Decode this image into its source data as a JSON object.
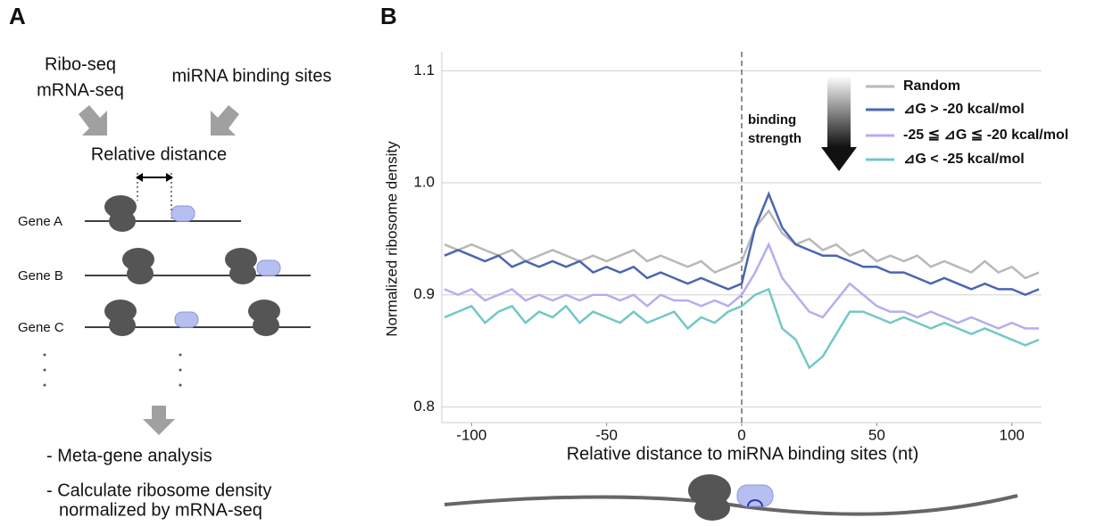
{
  "panel_a": {
    "label": "A",
    "inputs_left": [
      "Ribo-seq",
      "mRNA-seq"
    ],
    "input_right": "miRNA binding sites",
    "relative_distance": "Relative distance",
    "genes": [
      "Gene A",
      "Gene B",
      "Gene C"
    ],
    "steps": [
      "- Meta-gene analysis",
      "- Calculate ribosome density",
      "normalized by mRNA-seq"
    ]
  },
  "panel_b_label": "B",
  "chart_data": {
    "type": "line",
    "xlabel": "Relative distance to miRNA binding sites (nt)",
    "ylabel": "Normalized ribosome density",
    "annotation": [
      "binding",
      "strength"
    ],
    "xlim": [
      -111,
      111
    ],
    "ylim": [
      0.786,
      1.117
    ],
    "xticks": [
      -100,
      -50,
      0,
      50,
      100
    ],
    "yticks": [
      0.8,
      0.9,
      {
        "value": 1,
        "label": "1.0"
      },
      1.1
    ],
    "grid": true,
    "vline": 0,
    "legend": "upper right",
    "x": [
      -110,
      -105,
      -100,
      -95,
      -90,
      -85,
      -80,
      -75,
      -70,
      -65,
      -60,
      -55,
      -50,
      -45,
      -40,
      -35,
      -30,
      -25,
      -20,
      -15,
      -10,
      -5,
      0,
      5,
      10,
      15,
      20,
      25,
      30,
      35,
      40,
      45,
      50,
      55,
      60,
      65,
      70,
      75,
      80,
      85,
      90,
      95,
      100,
      105,
      110
    ],
    "series": [
      {
        "name": "Random",
        "color": "#b8b8b8",
        "values": [
          0.945,
          0.94,
          0.945,
          0.94,
          0.935,
          0.94,
          0.93,
          0.935,
          0.94,
          0.935,
          0.93,
          0.935,
          0.93,
          0.935,
          0.94,
          0.93,
          0.935,
          0.93,
          0.925,
          0.93,
          0.92,
          0.925,
          0.93,
          0.96,
          0.975,
          0.955,
          0.945,
          0.95,
          0.94,
          0.945,
          0.935,
          0.94,
          0.93,
          0.935,
          0.93,
          0.935,
          0.925,
          0.93,
          0.925,
          0.92,
          0.93,
          0.92,
          0.925,
          0.915,
          0.92
        ]
      },
      {
        "name": "⊿G > -20 kcal/mol",
        "color": "#4a66b0",
        "values": [
          0.935,
          0.94,
          0.935,
          0.93,
          0.935,
          0.925,
          0.93,
          0.925,
          0.93,
          0.925,
          0.93,
          0.92,
          0.925,
          0.92,
          0.925,
          0.915,
          0.92,
          0.915,
          0.91,
          0.915,
          0.91,
          0.905,
          0.91,
          0.96,
          0.99,
          0.96,
          0.945,
          0.94,
          0.935,
          0.935,
          0.93,
          0.925,
          0.925,
          0.92,
          0.92,
          0.915,
          0.91,
          0.915,
          0.91,
          0.905,
          0.91,
          0.905,
          0.905,
          0.9,
          0.905
        ]
      },
      {
        "name": "-25 ≦ ⊿G ≦ -20 kcal/mol",
        "color": "#b3aef0",
        "values": [
          0.905,
          0.9,
          0.905,
          0.895,
          0.9,
          0.905,
          0.895,
          0.9,
          0.895,
          0.9,
          0.895,
          0.9,
          0.9,
          0.895,
          0.9,
          0.89,
          0.9,
          0.895,
          0.895,
          0.89,
          0.895,
          0.89,
          0.9,
          0.92,
          0.945,
          0.915,
          0.9,
          0.885,
          0.88,
          0.895,
          0.91,
          0.9,
          0.89,
          0.885,
          0.885,
          0.88,
          0.885,
          0.88,
          0.875,
          0.88,
          0.875,
          0.87,
          0.875,
          0.87,
          0.87
        ]
      },
      {
        "name": "⊿G < -25 kcal/mol",
        "color": "#72c8c4",
        "values": [
          0.88,
          0.885,
          0.89,
          0.875,
          0.885,
          0.89,
          0.875,
          0.885,
          0.88,
          0.89,
          0.875,
          0.885,
          0.88,
          0.875,
          0.885,
          0.875,
          0.88,
          0.885,
          0.87,
          0.88,
          0.875,
          0.885,
          0.89,
          0.9,
          0.905,
          0.87,
          0.86,
          0.835,
          0.845,
          0.865,
          0.885,
          0.885,
          0.88,
          0.875,
          0.88,
          0.875,
          0.87,
          0.875,
          0.87,
          0.865,
          0.87,
          0.865,
          0.86,
          0.855,
          0.86
        ]
      }
    ]
  }
}
